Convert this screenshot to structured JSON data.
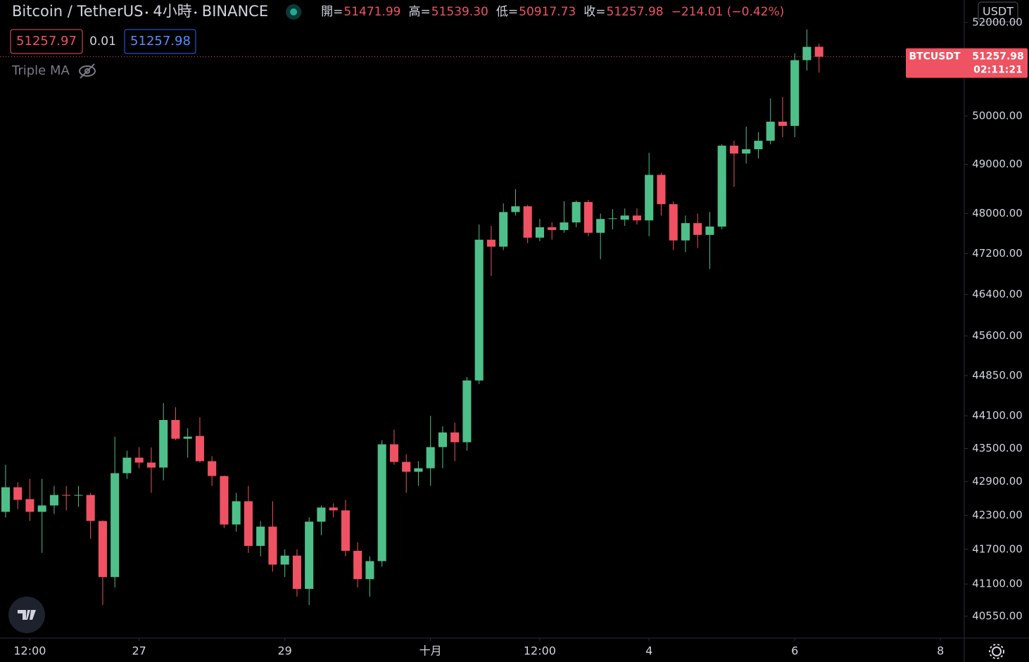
{
  "chart_data": {
    "type": "candlestick",
    "title": "Bitcoin / TetherUS",
    "interval": "4小時",
    "exchange": "BINANCE",
    "legend": [
      {
        "key": "開=",
        "value": "51471.99"
      },
      {
        "key": "高=",
        "value": "51539.30"
      },
      {
        "key": "低=",
        "value": "50917.73"
      },
      {
        "key": "收=",
        "value": "51257.98"
      }
    ],
    "change": "−214.01 (−0.42%)",
    "bid": 51257.97,
    "spread": 0.01,
    "ask": 51257.98,
    "indicator": "Triple MA",
    "currency": "USDT",
    "symbol": "BTCUSDT",
    "countdown": "02:11:21",
    "up_color": "#4fbf8a",
    "down_color": "#ef5262",
    "log_scale": true,
    "grid": false,
    "open": [
      42362,
      42800,
      42588,
      42362,
      42475,
      42662,
      42650,
      42662,
      42200,
      41220,
      43053,
      43334,
      43245,
      43155,
      44023,
      43679,
      43730,
      43270,
      43002,
      42138,
      42550,
      41762,
      42100,
      41436,
      41592,
      41016,
      42188,
      42438,
      42388,
      41676,
      41184,
      41496,
      43577,
      43257,
      43079,
      43142,
      43526,
      43794,
      43615,
      44758,
      47476,
      47338,
      48029,
      48145,
      47517,
      47724,
      47669,
      47821,
      48232,
      47614,
      47890,
      47876,
      47959,
      47862,
      48783,
      48188,
      47462,
      47807,
      47572,
      47738,
      49383,
      49221,
      49309,
      49485,
      49882,
      49794,
      51184,
      51471.99
    ],
    "high": [
      43206,
      42888,
      42951,
      42951,
      42825,
      42825,
      42825,
      42700,
      42210,
      43717,
      43462,
      43526,
      43520,
      44337,
      44258,
      43870,
      44074,
      43360,
      43010,
      42700,
      42825,
      42200,
      42550,
      41700,
      41700,
      42262,
      42475,
      42512,
      42575,
      41825,
      41580,
      43653,
      43845,
      43398,
      43270,
      44100,
      43908,
      43972,
      44824,
      47779,
      47752,
      48203,
      48493,
      48174,
      47890,
      47821,
      48247,
      48261,
      48276,
      48000,
      48087,
      48102,
      48102,
      49235,
      48826,
      48247,
      47959,
      48000,
      48029,
      49412,
      49485,
      49780,
      49662,
      50370,
      50400,
      51332,
      51850,
      51539.3
    ],
    "low": [
      42262,
      42412,
      42200,
      41640,
      42325,
      42388,
      42450,
      41888,
      40740,
      41040,
      42951,
      43142,
      42700,
      42925,
      43653,
      43334,
      43245,
      42825,
      42075,
      42012,
      41640,
      41580,
      41316,
      41220,
      40884,
      40740,
      41950,
      42262,
      41580,
      41040,
      40884,
      41400,
      43206,
      42700,
      42825,
      42825,
      43142,
      43270,
      43462,
      44692,
      46758,
      47269,
      47959,
      47407,
      47448,
      47476,
      47614,
      47724,
      47545,
      47090,
      47683,
      47752,
      47779,
      47545,
      47959,
      47269,
      47228,
      47310,
      46896,
      47683,
      48536,
      49015,
      49118,
      49412,
      49559,
      49559,
      50962,
      50917.73
    ],
    "close": [
      42800,
      42575,
      42362,
      42475,
      42662,
      42650,
      42662,
      42200,
      41220,
      43053,
      43334,
      43245,
      43155,
      44023,
      43679,
      43717,
      43270,
      43002,
      42138,
      42550,
      41762,
      42100,
      41436,
      41592,
      41016,
      42188,
      42438,
      42388,
      41676,
      41184,
      41496,
      43577,
      43257,
      43079,
      43142,
      43526,
      43794,
      43615,
      44758,
      47476,
      47338,
      48029,
      48145,
      47517,
      47724,
      47669,
      47821,
      48232,
      47614,
      47890,
      47903,
      47959,
      47862,
      48783,
      48188,
      47462,
      47807,
      47572,
      47738,
      49383,
      49221,
      49309,
      49485,
      49882,
      49794,
      51184,
      51470,
      51257.98
    ],
    "xlim": [
      -0.46,
      78.96
    ],
    "xticks": [
      {
        "value": 2,
        "label": "12:00"
      },
      {
        "value": 11,
        "label": "27"
      },
      {
        "value": 23,
        "label": "29"
      },
      {
        "value": 35,
        "label": "十月"
      },
      {
        "value": 44,
        "label": "12:00"
      },
      {
        "value": 53,
        "label": "4"
      },
      {
        "value": 65,
        "label": "6"
      },
      {
        "value": 77,
        "label": "8"
      }
    ],
    "ylim": [
      40180,
      52490
    ],
    "yticks": [
      {
        "value": 52000,
        "label": "52000.00"
      },
      {
        "value": 50000,
        "label": "50000.00"
      },
      {
        "value": 49000,
        "label": "49000.00"
      },
      {
        "value": 48000,
        "label": "48000.00"
      },
      {
        "value": 47200,
        "label": "47200.00"
      },
      {
        "value": 46400,
        "label": "46400.00"
      },
      {
        "value": 45600,
        "label": "45600.00"
      },
      {
        "value": 44850,
        "label": "44850.00"
      },
      {
        "value": 44100,
        "label": "44100.00"
      },
      {
        "value": 43500,
        "label": "43500.00"
      },
      {
        "value": 42900,
        "label": "42900.00"
      },
      {
        "value": 42300,
        "label": "42300.00"
      },
      {
        "value": 41700,
        "label": "41700.00"
      },
      {
        "value": 41100,
        "label": "41100.00"
      },
      {
        "value": 40550,
        "label": "40550.00"
      }
    ]
  }
}
